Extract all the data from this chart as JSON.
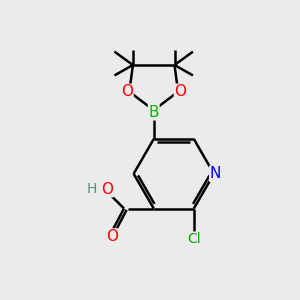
{
  "bg_color": "#ebebeb",
  "bond_color": "#000000",
  "bond_width": 1.8,
  "atom_colors": {
    "C": "#000000",
    "N": "#0000ff",
    "O": "#ff0000",
    "B": "#00bb00",
    "Cl": "#00aa00",
    "H": "#5a8a7a"
  },
  "font_size": 10,
  "fig_size": [
    3.0,
    3.0
  ],
  "dpi": 100
}
